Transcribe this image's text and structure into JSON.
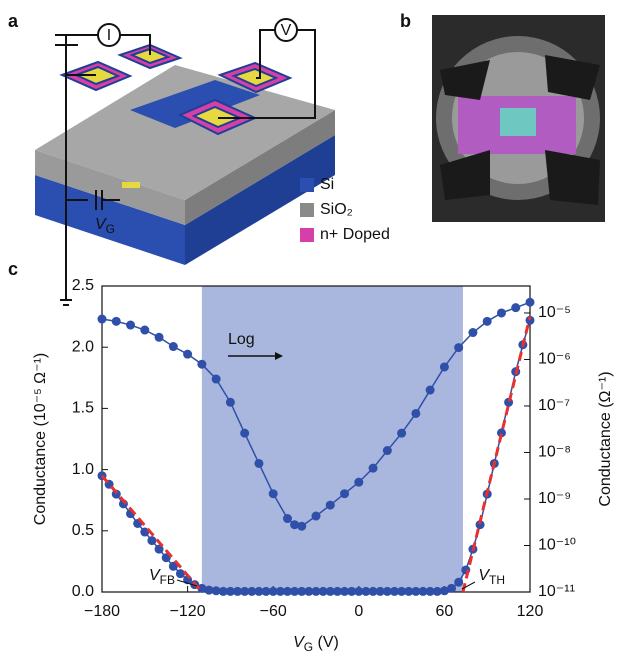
{
  "schematic": {
    "panel_label": "a",
    "current_meter": "I",
    "voltage_meter": "V",
    "gate_label": {
      "main": "V",
      "sub": "G"
    },
    "legend": [
      {
        "label": "Si",
        "color": "#2a4fb0"
      },
      {
        "label": "SiO₂",
        "color": "#8a8a8a"
      },
      {
        "label": "n+ Doped",
        "color": "#d63fa8"
      }
    ]
  },
  "photo": {
    "panel_label": "b"
  },
  "chart_data": {
    "type": "line",
    "panel_label": "c",
    "xlabel": {
      "main": "V",
      "sub": "G",
      "rest": " (V)"
    },
    "ylabel": "Conductance (10⁻⁵ Ω⁻¹)",
    "y2label": "Conductance (Ω⁻¹)",
    "xlim": [
      -180,
      120
    ],
    "xticks": [
      {
        "value": -180,
        "label": "−180"
      },
      {
        "value": -120,
        "label": "−120"
      },
      {
        "value": -60,
        "label": "−60"
      },
      0,
      60,
      120
    ],
    "ylim": [
      0,
      2.5
    ],
    "yticks": [
      {
        "value": 0,
        "label": "0.0"
      },
      0.5,
      {
        "value": 1,
        "label": "1.0"
      },
      1.5,
      {
        "value": 2,
        "label": "2.0"
      },
      2.5
    ],
    "y2lim": [
      1e-11,
      3.8e-05
    ],
    "y2log": true,
    "y2ticks": [
      {
        "value": 1e-11,
        "label": "10⁻¹¹"
      },
      {
        "value": 1e-10,
        "label": "10⁻¹⁰"
      },
      {
        "value": 1e-09,
        "label": "10⁻⁹"
      },
      {
        "value": 1e-08,
        "label": "10⁻⁸"
      },
      {
        "value": 1e-07,
        "label": "10⁻⁷"
      },
      {
        "value": 1e-06,
        "label": "10⁻⁶"
      },
      {
        "value": 1e-05,
        "label": "10⁻⁵"
      }
    ],
    "highlight_xlim": [
      -110,
      73
    ],
    "highlight_color": "#9aa9d8",
    "annotations": {
      "log": "Log",
      "vfb": {
        "main": "V",
        "sub": "FB"
      },
      "vth": {
        "main": "V",
        "sub": "TH"
      }
    },
    "series": [
      {
        "color": "#2f4fa8",
        "x": [
          -180,
          -175,
          -170,
          -165,
          -160,
          -155,
          -150,
          -145,
          -140,
          -135,
          -130,
          -125,
          -120,
          -115,
          -110,
          -105,
          -100,
          -95,
          -90,
          -85,
          -80,
          -75,
          -70,
          -65,
          -60,
          -55,
          -50,
          -45,
          -40,
          -35,
          -30,
          -25,
          -20,
          -15,
          -10,
          -5,
          0,
          5,
          10,
          15,
          20,
          25,
          30,
          35,
          40,
          45,
          50,
          55,
          60,
          65,
          70,
          75,
          80,
          85,
          90,
          95,
          100,
          105,
          110,
          115,
          120
        ],
        "values": [
          0.95,
          0.88,
          0.8,
          0.72,
          0.64,
          0.56,
          0.49,
          0.42,
          0.35,
          0.28,
          0.21,
          0.15,
          0.1,
          0.06,
          0.03,
          0.015,
          0.01,
          0.005,
          0.005,
          0.005,
          0.005,
          0.005,
          0.005,
          0.005,
          0.005,
          0.005,
          0.005,
          0.005,
          0.005,
          0.005,
          0.005,
          0.005,
          0.005,
          0.005,
          0.005,
          0.005,
          0.005,
          0.005,
          0.005,
          0.005,
          0.005,
          0.005,
          0.005,
          0.005,
          0.005,
          0.005,
          0.005,
          0.005,
          0.01,
          0.03,
          0.08,
          0.18,
          0.35,
          0.55,
          0.8,
          1.05,
          1.3,
          1.55,
          1.8,
          2.02,
          2.22
        ]
      },
      {
        "color": "#2f4fa8",
        "axis": "y2",
        "x": [
          -180,
          -170,
          -160,
          -150,
          -140,
          -130,
          -120,
          -110,
          -100,
          -90,
          -80,
          -70,
          -60,
          -50,
          -45,
          -40,
          -30,
          -20,
          -10,
          0,
          10,
          20,
          30,
          40,
          50,
          60,
          70,
          80,
          90,
          100,
          110,
          120
        ],
        "values": [
          7.4e-06,
          6.6e-06,
          5.5e-06,
          4.3e-06,
          3e-06,
          1.9e-06,
          1.3e-06,
          7.9e-07,
          3.8e-07,
          1.2e-07,
          2.6e-08,
          5.8e-09,
          1.3e-09,
          3.8e-10,
          2.8e-10,
          2.6e-10,
          4.3e-10,
          7.4e-10,
          1.3e-09,
          2.3e-09,
          4.6e-09,
          1.1e-08,
          2.6e-08,
          6.9e-08,
          2.2e-07,
          6.9e-07,
          1.8e-06,
          3.8e-06,
          6.6e-06,
          1e-05,
          1.3e-05,
          1.7e-05
        ]
      }
    ],
    "fits": [
      {
        "color": "#e8312f",
        "x": [
          -180,
          -110
        ],
        "values": [
          0.95,
          0
        ]
      },
      {
        "color": "#e8312f",
        "x": [
          73,
          120
        ],
        "values": [
          0,
          2.25
        ]
      }
    ]
  }
}
